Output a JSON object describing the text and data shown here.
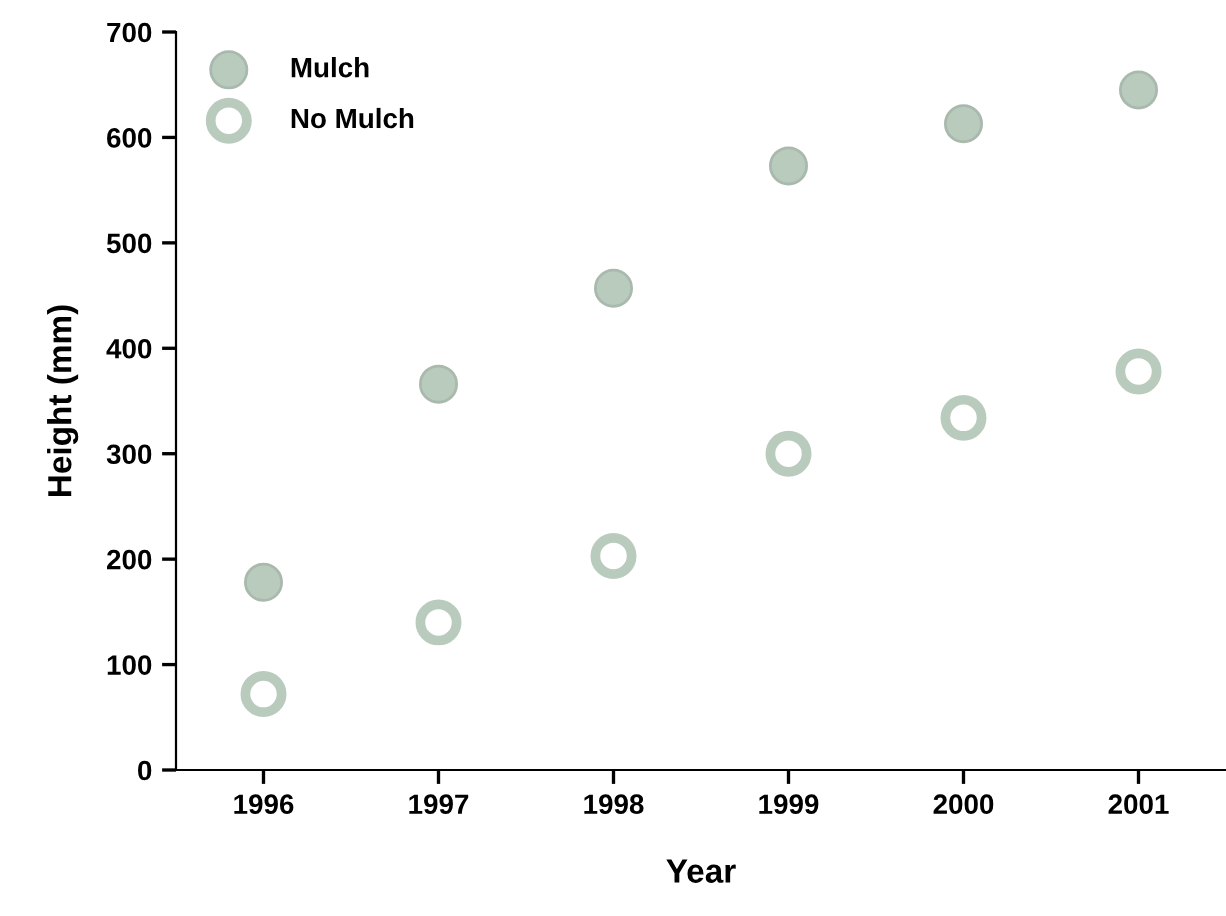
{
  "chart_data": {
    "type": "scatter",
    "xlabel": "Year",
    "ylabel": "Height (mm)",
    "x": [
      1996,
      1997,
      1998,
      1999,
      2000,
      2001
    ],
    "series": [
      {
        "name": "Mulch",
        "color": "#b9cbbd",
        "values": [
          178,
          366,
          457,
          573,
          613,
          645
        ]
      },
      {
        "name": "No Mulch",
        "color": "#b9cbbd",
        "values": [
          72,
          140,
          203,
          300,
          334,
          378
        ]
      }
    ],
    "xlim": [
      1995.5,
      2001.5
    ],
    "xticks": [
      1996,
      1997,
      1998,
      1999,
      2000,
      2001
    ],
    "ylim": [
      0,
      700
    ],
    "yticks": [
      0,
      100,
      200,
      300,
      400,
      500,
      600,
      700
    ],
    "marker": "circle",
    "grid": false,
    "legend": "top left"
  }
}
